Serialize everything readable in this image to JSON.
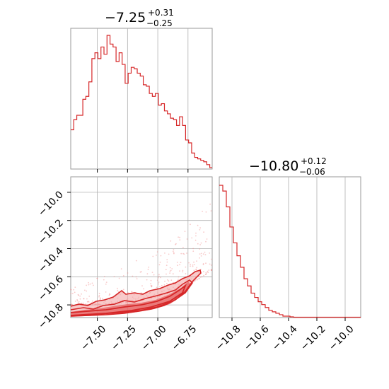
{
  "chart_data": [
    {
      "id": "marginal-x",
      "type": "histogram",
      "title_value": "−7.25",
      "title_plus": "+0.31",
      "title_minus": "−0.25",
      "xlim": [
        -7.72,
        -6.55
      ],
      "x_ticks": [
        -7.5,
        -7.25,
        -7.0,
        -6.75
      ],
      "bin_width": 0.025,
      "counts": [
        0.27,
        0.34,
        0.37,
        0.37,
        0.48,
        0.5,
        0.6,
        0.76,
        0.8,
        0.76,
        0.84,
        0.79,
        0.92,
        0.86,
        0.84,
        0.74,
        0.8,
        0.72,
        0.59,
        0.66,
        0.7,
        0.69,
        0.66,
        0.64,
        0.58,
        0.57,
        0.52,
        0.5,
        0.52,
        0.44,
        0.45,
        0.4,
        0.38,
        0.35,
        0.34,
        0.3,
        0.36,
        0.3,
        0.2,
        0.18,
        0.11,
        0.08,
        0.07,
        0.06,
        0.05,
        0.03,
        0.01
      ],
      "color": "#d62728",
      "grid": true
    },
    {
      "id": "marginal-y",
      "type": "histogram",
      "title_value": "−10.80",
      "title_plus": "+0.12",
      "title_minus": "−0.06",
      "xlim": [
        -10.89,
        -9.89
      ],
      "x_ticks": [
        -10.8,
        -10.6,
        -10.4,
        -10.2,
        -10.0
      ],
      "x_tick_labels": [
        "−10.8",
        "−10.6",
        "−10.4",
        "−10.2",
        "−10.0"
      ],
      "bin_width": 0.025,
      "counts": [
        0.92,
        0.88,
        0.77,
        0.63,
        0.52,
        0.43,
        0.35,
        0.27,
        0.22,
        0.17,
        0.14,
        0.11,
        0.09,
        0.07,
        0.05,
        0.04,
        0.03,
        0.02,
        0.01,
        0.01,
        0.005
      ],
      "color": "#d62728",
      "grid": true
    },
    {
      "id": "joint",
      "type": "scatter-contour",
      "xlim": [
        -7.72,
        -6.55
      ],
      "ylim": [
        -10.89,
        -9.89
      ],
      "x_ticks": [
        -7.5,
        -7.25,
        -7.0,
        -6.75
      ],
      "x_tick_labels": [
        "−7.50",
        "−7.25",
        "−7.00",
        "−6.75"
      ],
      "y_ticks": [
        -10.8,
        -10.6,
        -10.4,
        -10.2,
        -10.0
      ],
      "y_tick_labels": [
        "−10.8",
        "−10.6",
        "−10.4",
        "−10.2",
        "−10.0"
      ],
      "color": "#d62728",
      "grid": true
    }
  ]
}
